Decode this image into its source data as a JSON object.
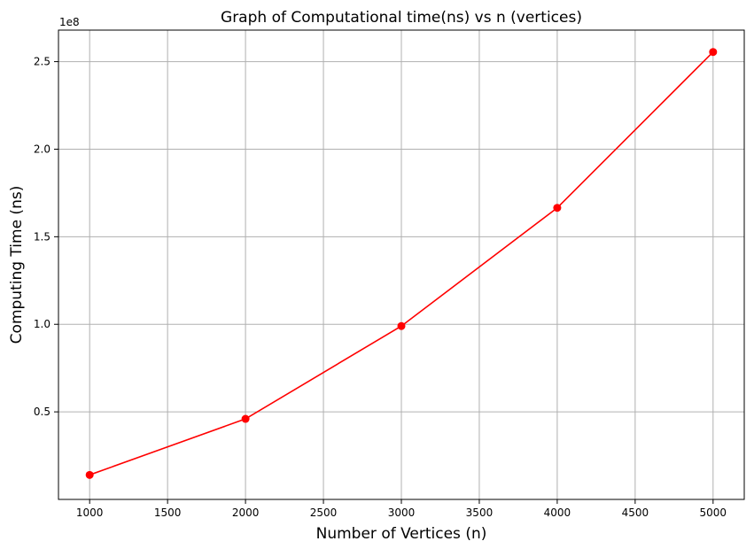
{
  "chart_data": {
    "type": "line",
    "title": "Graph of Computational time(ns) vs n (vertices)",
    "xlabel": "Number of Vertices (n)",
    "ylabel": "Computing Time (ns)",
    "y_offset_label": "1e8",
    "xlim": [
      800,
      5200
    ],
    "ylim": [
      0,
      2.68
    ],
    "y_scale_multiplier": 100000000,
    "x_ticks": [
      1000,
      1500,
      2000,
      2500,
      3000,
      3500,
      4000,
      4500,
      5000
    ],
    "x_tick_labels": [
      "1000",
      "1500",
      "2000",
      "2500",
      "3000",
      "3500",
      "4000",
      "4500",
      "5000"
    ],
    "y_ticks": [
      0.5,
      1.0,
      1.5,
      2.0,
      2.5
    ],
    "y_tick_labels": [
      "0.5",
      "1.0",
      "1.5",
      "2.0",
      "2.5"
    ],
    "grid": true,
    "legend": "none",
    "series": [
      {
        "color": "#ff0000",
        "marker": "circle",
        "x": [
          1000,
          2000,
          3000,
          4000,
          5000
        ],
        "y": [
          0.14,
          0.46,
          0.99,
          1.665,
          2.555
        ]
      }
    ]
  }
}
